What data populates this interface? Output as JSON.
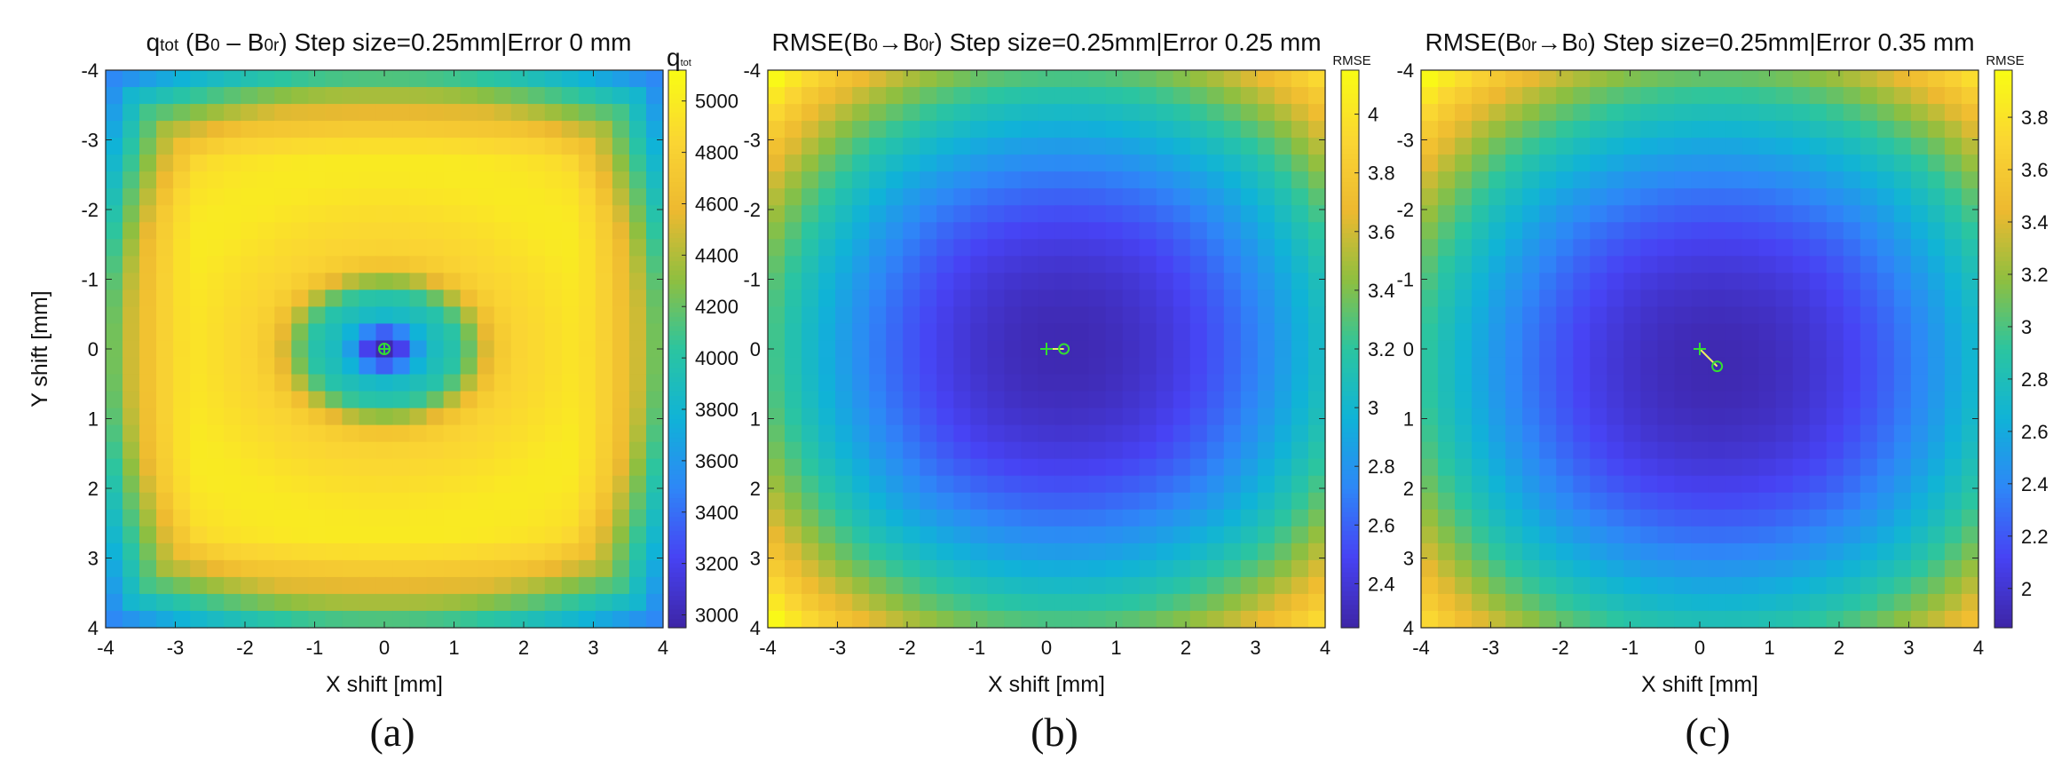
{
  "figure": {
    "x_label": "X shift [mm]",
    "y_label": "Y shift [mm]",
    "x_ticks": [
      -4,
      -3,
      -2,
      -1,
      0,
      1,
      2,
      3,
      4
    ],
    "y_ticks": [
      -4,
      -3,
      -2,
      -1,
      0,
      1,
      2,
      3,
      4
    ],
    "x_range": [
      -4,
      4
    ],
    "y_range": [
      -4,
      4
    ],
    "grid_step_mm": 0.25
  },
  "chart_data": [
    {
      "type": "heatmap",
      "panel_label": "(a)",
      "title_parts": [
        {
          "text": "q",
          "sub": false
        },
        {
          "text": "tot",
          "sub": true
        },
        {
          "text": " (B",
          "sub": false
        },
        {
          "text": "0",
          "sub": true
        },
        {
          "text": " – B",
          "sub": false
        },
        {
          "text": "0r",
          "sub": true
        },
        {
          "text": ") Step size=0.25mm|Error 0 mm",
          "sub": false
        }
      ],
      "colorbar_label_parts": [
        {
          "text": "q",
          "sub": false
        },
        {
          "text": "tot",
          "sub": true
        }
      ],
      "colorbar_ticks": [
        3000,
        3200,
        3400,
        3600,
        3800,
        4000,
        4200,
        4400,
        4600,
        4800,
        5000
      ],
      "clim": [
        2950,
        5120
      ],
      "field": "qtot",
      "marker": {
        "type": "circle-plus",
        "true_shift": [
          0,
          0
        ],
        "estimated_shift": [
          0,
          0
        ]
      },
      "xlabel": "X shift [mm]",
      "ylabel": "Y shift [mm]",
      "error_mm": 0
    },
    {
      "type": "heatmap",
      "panel_label": "(b)",
      "title_parts": [
        {
          "text": "RMSE(B",
          "sub": false
        },
        {
          "text": "0",
          "sub": true
        },
        {
          "text": "→B",
          "sub": false
        },
        {
          "text": "0r",
          "sub": true
        },
        {
          "text": ") Step size=0.25mm|Error 0.25 mm",
          "sub": false
        }
      ],
      "colorbar_label_parts": [
        {
          "text": "RMSE",
          "sub": false
        }
      ],
      "colorbar_ticks": [
        2.4,
        2.6,
        2.8,
        3,
        3.2,
        3.4,
        3.6,
        3.8,
        4
      ],
      "clim": [
        2.25,
        4.15
      ],
      "field": "rmse",
      "minimum": [
        0.25,
        0
      ],
      "marker": {
        "type": "plus-to-circle",
        "true_shift": [
          0,
          0
        ],
        "estimated_shift": [
          0.25,
          0
        ]
      },
      "xlabel": "X shift [mm]",
      "ylabel": "",
      "error_mm": 0.25
    },
    {
      "type": "heatmap",
      "panel_label": "(c)",
      "title_parts": [
        {
          "text": "RMSE(B",
          "sub": false
        },
        {
          "text": "0r",
          "sub": true
        },
        {
          "text": "→B",
          "sub": false
        },
        {
          "text": "0",
          "sub": true
        },
        {
          "text": ") Step size=0.25mm|Error 0.35 mm",
          "sub": false
        }
      ],
      "colorbar_label_parts": [
        {
          "text": "RMSE",
          "sub": false
        }
      ],
      "colorbar_ticks": [
        2,
        2.2,
        2.4,
        2.6,
        2.8,
        3,
        3.2,
        3.4,
        3.6,
        3.8
      ],
      "clim": [
        1.85,
        3.98
      ],
      "field": "rmse",
      "minimum": [
        0.25,
        0.25
      ],
      "marker": {
        "type": "plus-to-circle",
        "true_shift": [
          0,
          0
        ],
        "estimated_shift": [
          0.25,
          0.25
        ]
      },
      "xlabel": "X shift [mm]",
      "ylabel": "",
      "error_mm": 0.35
    }
  ],
  "colors": {
    "axis": "#262626",
    "marker": "#33dd33",
    "marker_line": "#eeee66",
    "colormap": [
      "#3e26a8",
      "#4743f4",
      "#2e87f7",
      "#10b3d7",
      "#2bc5a0",
      "#8ebf40",
      "#edb930",
      "#fad533",
      "#f9fb15"
    ]
  }
}
